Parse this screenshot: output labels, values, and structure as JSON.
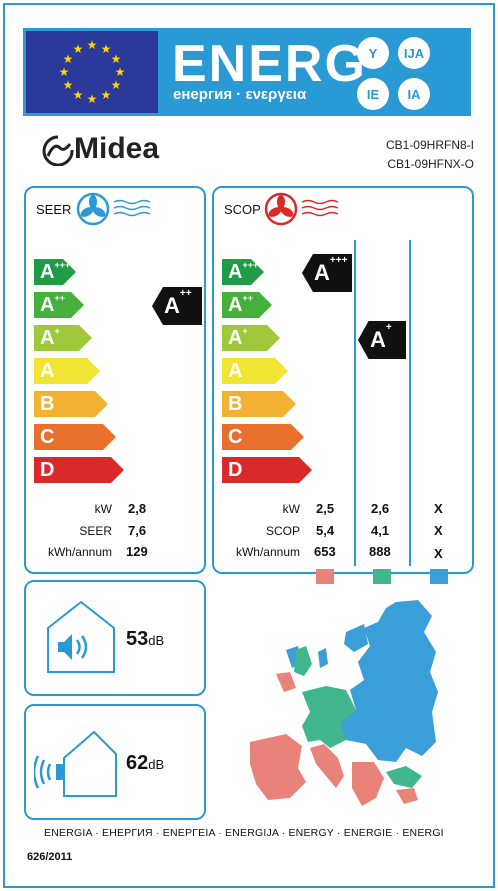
{
  "header": {
    "title": "ENERG",
    "subtitle": "енергия · ενεργεια",
    "bubbles": [
      "Y",
      "IJA",
      "IE",
      "IA"
    ]
  },
  "brand": "Midea",
  "models": {
    "indoor": "CB1-09HRFN8-I",
    "outdoor": "CB1-09HFNX-O"
  },
  "classes": [
    {
      "letter": "A",
      "sup": "+++",
      "color": "#1f9c45"
    },
    {
      "letter": "A",
      "sup": "++",
      "color": "#46b03c"
    },
    {
      "letter": "A",
      "sup": "+",
      "color": "#9fc93a"
    },
    {
      "letter": "A",
      "sup": "",
      "color": "#f2e534"
    },
    {
      "letter": "B",
      "sup": "",
      "color": "#f4b233"
    },
    {
      "letter": "C",
      "sup": "",
      "color": "#e8702c"
    },
    {
      "letter": "D",
      "sup": "",
      "color": "#d92a29"
    }
  ],
  "cooling": {
    "title": "SEER",
    "rating": {
      "letter": "A",
      "sup": "++"
    },
    "labels": [
      "kW",
      "SEER",
      "kWh/annum"
    ],
    "values": [
      "2,8",
      "7,6",
      "129"
    ]
  },
  "heating": {
    "title": "SCOP",
    "ratings": [
      {
        "letter": "A",
        "sup": "+++"
      },
      {
        "letter": "A",
        "sup": "+"
      }
    ],
    "labels": [
      "kW",
      "SCOP",
      "kWh/annum"
    ],
    "columns": [
      {
        "values": [
          "2,5",
          "5,4",
          "653"
        ],
        "color": "#e9837a"
      },
      {
        "values": [
          "2,6",
          "4,1",
          "888"
        ],
        "color": "#3fb68b"
      },
      {
        "values": [
          "X",
          "X",
          "X"
        ],
        "color": "#3a9fd8"
      }
    ]
  },
  "noise": {
    "indoor": {
      "value": "53",
      "unit": "dB"
    },
    "outdoor": {
      "value": "62",
      "unit": "dB"
    }
  },
  "footer": "ENERGIA · ЕНЕРГИЯ · ΕΝΕΡΓΕΙΑ · ENERGIJA · ENERGY · ENERGIE · ENERGI",
  "regulation": "626/2011"
}
